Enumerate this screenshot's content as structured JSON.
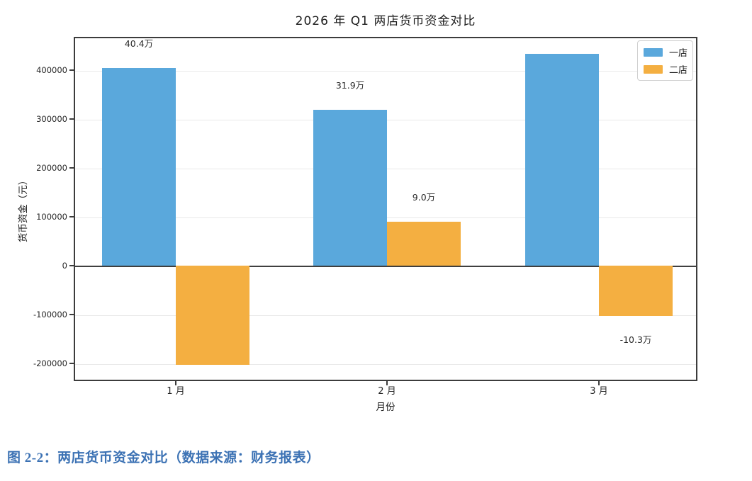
{
  "title": "2026 年 Q1 两店货币资金对比",
  "caption": "图 2-2：两店货币资金对比（数据来源：财务报表）",
  "colors": {
    "store1_bar": "#5AA8DC",
    "store2_bar": "#F4AF41",
    "caption_text": "#3C72B4",
    "axis_spine": "#3c3c3c",
    "gridline": "#e9e9e9"
  },
  "chart_data": {
    "type": "bar",
    "title": "2026 年 Q1 两店货币资金对比",
    "xlabel": "月份",
    "ylabel": "货币资金（元）",
    "categories": [
      "1 月",
      "2 月",
      "3 月"
    ],
    "series": [
      {
        "name": "一店",
        "color": "#5AA8DC",
        "values": [
          404000,
          319000,
          433000
        ],
        "visible_labels": [
          "40.4万",
          "31.9万",
          null
        ]
      },
      {
        "name": "二店",
        "color": "#F4AF41",
        "values": [
          -203000,
          90000,
          -103000
        ],
        "visible_labels": [
          null,
          "9.0万",
          "-10.3万"
        ]
      }
    ],
    "yticks": [
      400000,
      300000,
      200000,
      100000,
      0,
      -100000,
      -200000
    ],
    "ylim": [
      -236000,
      468000
    ],
    "grid": true,
    "zero_line": true,
    "legend_position": "upper right"
  }
}
